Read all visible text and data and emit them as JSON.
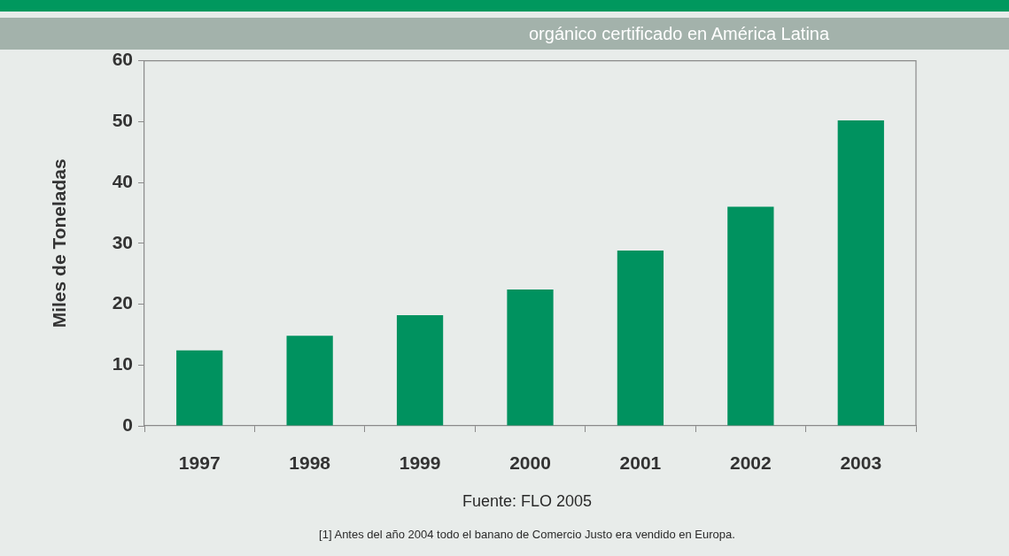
{
  "chart_data": {
    "type": "bar",
    "title": "orgánico certificado en América Latina",
    "ylabel": "Miles de Toneladas",
    "categories": [
      "1997",
      "1998",
      "1999",
      "2000",
      "2001",
      "2002",
      "2003"
    ],
    "values": [
      12.4,
      14.8,
      18.2,
      22.4,
      28.8,
      36.0,
      50.2
    ],
    "color": "#00925f",
    "ylim": [
      0,
      60
    ],
    "yticks": [
      0,
      10,
      20,
      30,
      40,
      50,
      60
    ],
    "annotations": [
      "Fuente: FLO 2005",
      "[1] Antes del año 2004 todo el banano de Comercio Justo era vendido en Europa."
    ]
  }
}
